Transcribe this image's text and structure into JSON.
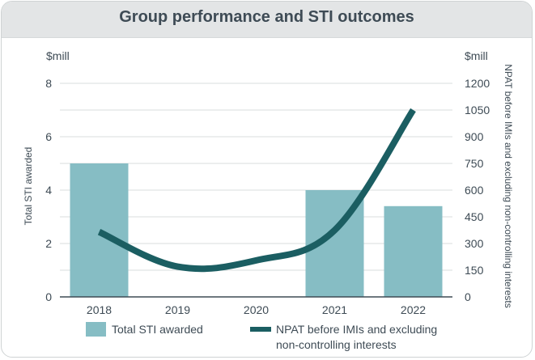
{
  "chart_data": {
    "type": "bar+line",
    "title": "Group performance and STI outcomes",
    "categories": [
      "2018",
      "2019",
      "2020",
      "2021",
      "2022"
    ],
    "left_axis": {
      "unit": "$mill",
      "label": "Total STI awarded",
      "ylim": [
        0,
        8
      ],
      "ticks": [
        "0",
        "2",
        "4",
        "6",
        "8"
      ]
    },
    "right_axis": {
      "unit": "$mill",
      "label": "NPAT before IMIs and excluding non-controlling interests",
      "ylim": [
        0,
        1200
      ],
      "ticks": [
        "0",
        "150",
        "300",
        "450",
        "600",
        "750",
        "900",
        "1050",
        "1200"
      ]
    },
    "series": [
      {
        "name": "Total STI awarded",
        "type": "bar",
        "axis": "left",
        "values": [
          5.0,
          0,
          0,
          4.0,
          3.4
        ],
        "color": "#86bdc4"
      },
      {
        "name": "NPAT before IMIs and excluding non-controlling interests",
        "type": "line",
        "axis": "right",
        "values": [
          365,
          170,
          205,
          375,
          1050
        ],
        "color": "#1b5e62"
      }
    ],
    "legend": {
      "placement": "bottom",
      "items": [
        {
          "label": "Total STI awarded"
        },
        {
          "label_line1": "NPAT before IMIs and excluding",
          "label_line2": "non-controlling interests"
        }
      ]
    },
    "grid": true
  }
}
